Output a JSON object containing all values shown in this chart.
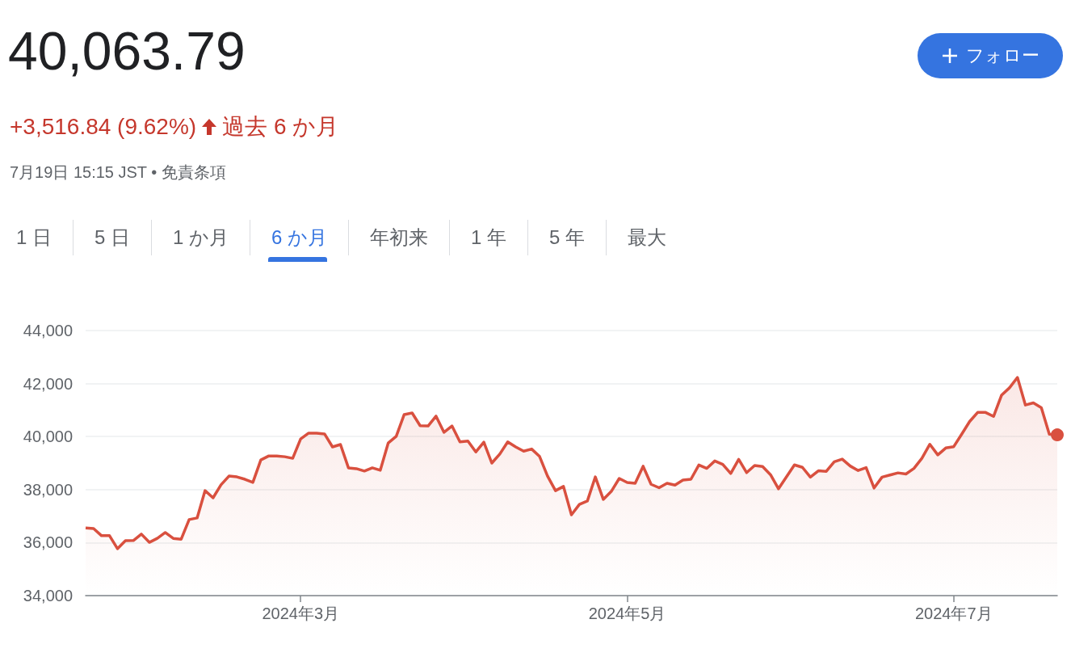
{
  "chart_data": {
    "type": "area",
    "title": "40,063.79",
    "subtitle": "+3,516.84 (9.62%)",
    "annotations": [
      "過去 6 か月",
      "7月19日 15:15 JST • 免責条項",
      "フォロー",
      "1 日",
      "5 日",
      "1 か月",
      "6 か月",
      "年初来",
      "1 年",
      "5 年",
      "最大"
    ],
    "categories": [
      null,
      null,
      null,
      null,
      null,
      null,
      null,
      null,
      null,
      null,
      null,
      null,
      null,
      null,
      null,
      null,
      null,
      null,
      null,
      null,
      null,
      null,
      null,
      null,
      null,
      null,
      null,
      "2024年3月",
      null,
      null,
      null,
      null,
      null,
      null,
      null,
      null,
      null,
      null,
      null,
      null,
      null,
      null,
      null,
      null,
      null,
      null,
      null,
      null,
      null,
      null,
      null,
      null,
      null,
      null,
      null,
      null,
      null,
      null,
      null,
      null,
      null,
      null,
      null,
      null,
      null,
      null,
      null,
      null,
      "2024年5月",
      null,
      null,
      null,
      null,
      null,
      null,
      null,
      null,
      null,
      null,
      null,
      null,
      null,
      null,
      null,
      null,
      null,
      null,
      null,
      null,
      null,
      null,
      null,
      null,
      null,
      null,
      null,
      null,
      null,
      null,
      null,
      null,
      null,
      null,
      null,
      null,
      null,
      null,
      null,
      null,
      "2024年7月",
      null,
      null,
      null,
      null,
      null,
      null,
      null,
      null,
      null,
      null,
      null,
      null,
      null
    ],
    "series": [
      {
        "color": "#d9503f",
        "values": [
          36550,
          36530,
          36260,
          36260,
          35770,
          36070,
          36080,
          36320,
          36010,
          36160,
          36380,
          36160,
          36130,
          36870,
          36930,
          37960,
          37690,
          38180,
          38510,
          38480,
          38390,
          38270,
          39120,
          39270,
          39270,
          39240,
          39180,
          39910,
          40130,
          40130,
          40100,
          39610,
          39700,
          38820,
          38790,
          38700,
          38820,
          38730,
          39760,
          40010,
          40830,
          40890,
          40410,
          40400,
          40770,
          40160,
          40400,
          39800,
          39830,
          39420,
          39790,
          39000,
          39340,
          39800,
          39610,
          39450,
          39530,
          39250,
          38510,
          37960,
          38120,
          37050,
          37440,
          37570,
          38480,
          37630,
          37930,
          38420,
          38270,
          38240,
          38880,
          38200,
          38070,
          38240,
          38170,
          38360,
          38390,
          38930,
          38800,
          39080,
          38950,
          38610,
          39140,
          38640,
          38910,
          38870,
          38560,
          38030,
          38480,
          38930,
          38840,
          38470,
          38710,
          38690,
          39050,
          39150,
          38890,
          38720,
          38830,
          38060,
          38470,
          38550,
          38630,
          38590,
          38800,
          39180,
          39710,
          39310,
          39570,
          39620,
          40090,
          40570,
          40910,
          40910,
          40760,
          41560,
          41840,
          42230,
          41190,
          41270,
          41090,
          40090,
          40064
        ]
      }
    ],
    "ylim": [
      34000,
      44000
    ],
    "yticks": [
      {
        "value": 34000,
        "label": "34,000"
      },
      {
        "value": 36000,
        "label": "36,000"
      },
      {
        "value": 38000,
        "label": "38,000"
      },
      {
        "value": 40000,
        "label": "40,000"
      },
      {
        "value": 42000,
        "label": "42,000"
      },
      {
        "value": 44000,
        "label": "44,000"
      }
    ],
    "grid": "y"
  }
}
